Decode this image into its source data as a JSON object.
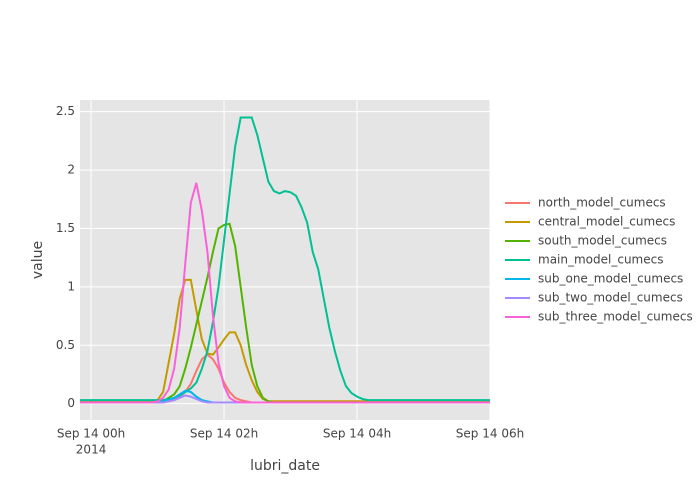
{
  "chart_data": {
    "type": "line",
    "x_label": "lubri_date",
    "y_label": "value",
    "x": [
      "2014-09-13T23:50",
      "2014-09-13T23:55",
      "2014-09-14T00:00",
      "2014-09-14T00:05",
      "2014-09-14T00:10",
      "2014-09-14T00:15",
      "2014-09-14T00:20",
      "2014-09-14T00:25",
      "2014-09-14T00:30",
      "2014-09-14T00:35",
      "2014-09-14T00:40",
      "2014-09-14T00:45",
      "2014-09-14T00:50",
      "2014-09-14T00:55",
      "2014-09-14T01:00",
      "2014-09-14T01:05",
      "2014-09-14T01:10",
      "2014-09-14T01:15",
      "2014-09-14T01:20",
      "2014-09-14T01:25",
      "2014-09-14T01:30",
      "2014-09-14T01:35",
      "2014-09-14T01:40",
      "2014-09-14T01:45",
      "2014-09-14T01:50",
      "2014-09-14T01:55",
      "2014-09-14T02:00",
      "2014-09-14T02:05",
      "2014-09-14T02:10",
      "2014-09-14T02:15",
      "2014-09-14T02:20",
      "2014-09-14T02:25",
      "2014-09-14T02:30",
      "2014-09-14T02:35",
      "2014-09-14T02:40",
      "2014-09-14T02:45",
      "2014-09-14T02:50",
      "2014-09-14T02:55",
      "2014-09-14T03:00",
      "2014-09-14T03:05",
      "2014-09-14T03:10",
      "2014-09-14T03:15",
      "2014-09-14T03:20",
      "2014-09-14T03:25",
      "2014-09-14T03:30",
      "2014-09-14T03:35",
      "2014-09-14T03:40",
      "2014-09-14T03:45",
      "2014-09-14T03:50",
      "2014-09-14T03:55",
      "2014-09-14T04:00",
      "2014-09-14T04:05",
      "2014-09-14T04:10",
      "2014-09-14T04:15",
      "2014-09-14T04:20",
      "2014-09-14T04:25",
      "2014-09-14T04:30",
      "2014-09-14T04:35",
      "2014-09-14T04:40",
      "2014-09-14T04:45",
      "2014-09-14T04:50",
      "2014-09-14T04:55",
      "2014-09-14T05:00",
      "2014-09-14T05:05",
      "2014-09-14T05:10",
      "2014-09-14T05:15",
      "2014-09-14T05:20",
      "2014-09-14T05:25",
      "2014-09-14T05:30",
      "2014-09-14T05:35",
      "2014-09-14T05:40",
      "2014-09-14T05:45",
      "2014-09-14T05:50",
      "2014-09-14T05:55",
      "2014-09-14T06:00"
    ],
    "series": [
      {
        "name": "north_model_cumecs",
        "color": "#F8766D",
        "values": [
          0.01,
          0.01,
          0.01,
          0.01,
          0.01,
          0.01,
          0.01,
          0.01,
          0.01,
          0.01,
          0.01,
          0.01,
          0.01,
          0.01,
          0.01,
          0.01,
          0.02,
          0.03,
          0.06,
          0.1,
          0.17,
          0.28,
          0.38,
          0.42,
          0.38,
          0.3,
          0.18,
          0.1,
          0.05,
          0.03,
          0.02,
          0.01,
          0.01,
          0.01,
          0.01,
          0.01,
          0.01,
          0.01,
          0.01,
          0.01,
          0.01,
          0.01,
          0.01,
          0.01,
          0.01,
          0.01,
          0.01,
          0.01,
          0.01,
          0.01,
          0.01,
          0.01,
          0.01,
          0.01,
          0.01,
          0.01,
          0.01,
          0.01,
          0.01,
          0.01,
          0.01,
          0.01,
          0.01,
          0.01,
          0.01,
          0.01,
          0.01,
          0.01,
          0.01,
          0.01,
          0.01,
          0.01,
          0.01,
          0.01,
          0.01
        ]
      },
      {
        "name": "central_model_cumecs",
        "color": "#C49A00",
        "values": [
          0.02,
          0.02,
          0.02,
          0.02,
          0.02,
          0.02,
          0.02,
          0.02,
          0.02,
          0.02,
          0.02,
          0.02,
          0.02,
          0.02,
          0.03,
          0.1,
          0.35,
          0.6,
          0.9,
          1.06,
          1.06,
          0.8,
          0.55,
          0.43,
          0.42,
          0.48,
          0.55,
          0.61,
          0.61,
          0.5,
          0.33,
          0.2,
          0.1,
          0.04,
          0.02,
          0.02,
          0.02,
          0.02,
          0.02,
          0.02,
          0.02,
          0.02,
          0.02,
          0.02,
          0.02,
          0.02,
          0.02,
          0.02,
          0.02,
          0.02,
          0.02,
          0.02,
          0.02,
          0.02,
          0.02,
          0.02,
          0.02,
          0.02,
          0.02,
          0.02,
          0.02,
          0.02,
          0.02,
          0.02,
          0.02,
          0.02,
          0.02,
          0.02,
          0.02,
          0.02,
          0.02,
          0.02,
          0.02,
          0.02,
          0.02
        ]
      },
      {
        "name": "south_model_cumecs",
        "color": "#53B400",
        "values": [
          0.01,
          0.01,
          0.01,
          0.01,
          0.01,
          0.01,
          0.01,
          0.01,
          0.01,
          0.01,
          0.01,
          0.01,
          0.01,
          0.01,
          0.01,
          0.02,
          0.05,
          0.08,
          0.15,
          0.3,
          0.48,
          0.68,
          0.88,
          1.08,
          1.3,
          1.5,
          1.53,
          1.54,
          1.35,
          1.0,
          0.65,
          0.33,
          0.15,
          0.05,
          0.02,
          0.01,
          0.01,
          0.01,
          0.01,
          0.01,
          0.01,
          0.01,
          0.01,
          0.01,
          0.01,
          0.01,
          0.01,
          0.01,
          0.01,
          0.01,
          0.01,
          0.01,
          0.01,
          0.01,
          0.01,
          0.01,
          0.01,
          0.01,
          0.01,
          0.01,
          0.01,
          0.01,
          0.01,
          0.01,
          0.01,
          0.01,
          0.01,
          0.01,
          0.01,
          0.01,
          0.01,
          0.01,
          0.01,
          0.01,
          0.01
        ]
      },
      {
        "name": "main_model_cumecs",
        "color": "#00C094",
        "values": [
          0.03,
          0.03,
          0.03,
          0.03,
          0.03,
          0.03,
          0.03,
          0.03,
          0.03,
          0.03,
          0.03,
          0.03,
          0.03,
          0.03,
          0.03,
          0.03,
          0.04,
          0.05,
          0.07,
          0.1,
          0.13,
          0.18,
          0.3,
          0.45,
          0.7,
          1.0,
          1.4,
          1.8,
          2.2,
          2.45,
          2.45,
          2.45,
          2.3,
          2.1,
          1.9,
          1.82,
          1.8,
          1.82,
          1.81,
          1.78,
          1.68,
          1.55,
          1.3,
          1.15,
          0.9,
          0.65,
          0.45,
          0.28,
          0.15,
          0.09,
          0.06,
          0.04,
          0.03,
          0.03,
          0.03,
          0.03,
          0.03,
          0.03,
          0.03,
          0.03,
          0.03,
          0.03,
          0.03,
          0.03,
          0.03,
          0.03,
          0.03,
          0.03,
          0.03,
          0.03,
          0.03,
          0.03,
          0.03,
          0.03,
          0.03
        ]
      },
      {
        "name": "sub_one_model_cumecs",
        "color": "#00B6EB",
        "values": [
          0.01,
          0.01,
          0.01,
          0.01,
          0.01,
          0.01,
          0.01,
          0.01,
          0.01,
          0.01,
          0.01,
          0.01,
          0.01,
          0.01,
          0.01,
          0.02,
          0.03,
          0.05,
          0.08,
          0.11,
          0.1,
          0.06,
          0.03,
          0.02,
          0.01,
          0.01,
          0.01,
          0.01,
          0.01,
          0.01,
          0.01,
          0.01,
          0.01,
          0.01,
          0.01,
          0.01,
          0.01,
          0.01,
          0.01,
          0.01,
          0.01,
          0.01,
          0.01,
          0.01,
          0.01,
          0.01,
          0.01,
          0.01,
          0.01,
          0.01,
          0.01,
          0.01,
          0.01,
          0.01,
          0.01,
          0.01,
          0.01,
          0.01,
          0.01,
          0.01,
          0.01,
          0.01,
          0.01,
          0.01,
          0.01,
          0.01,
          0.01,
          0.01,
          0.01,
          0.01,
          0.01,
          0.01,
          0.01,
          0.01,
          0.01
        ]
      },
      {
        "name": "sub_two_model_cumecs",
        "color": "#A58AFF",
        "values": [
          0.01,
          0.01,
          0.01,
          0.01,
          0.01,
          0.01,
          0.01,
          0.01,
          0.01,
          0.01,
          0.01,
          0.01,
          0.01,
          0.01,
          0.01,
          0.01,
          0.02,
          0.03,
          0.05,
          0.07,
          0.06,
          0.04,
          0.02,
          0.01,
          0.01,
          0.01,
          0.01,
          0.01,
          0.01,
          0.01,
          0.01,
          0.01,
          0.01,
          0.01,
          0.01,
          0.01,
          0.01,
          0.01,
          0.01,
          0.01,
          0.01,
          0.01,
          0.01,
          0.01,
          0.01,
          0.01,
          0.01,
          0.01,
          0.01,
          0.01,
          0.01,
          0.01,
          0.01,
          0.01,
          0.01,
          0.01,
          0.01,
          0.01,
          0.01,
          0.01,
          0.01,
          0.01,
          0.01,
          0.01,
          0.01,
          0.01,
          0.01,
          0.01,
          0.01,
          0.01,
          0.01,
          0.01,
          0.01,
          0.01,
          0.01
        ]
      },
      {
        "name": "sub_three_model_cumecs",
        "color": "#FB61D7",
        "values": [
          0.01,
          0.01,
          0.01,
          0.01,
          0.01,
          0.01,
          0.01,
          0.01,
          0.01,
          0.01,
          0.01,
          0.01,
          0.01,
          0.01,
          0.02,
          0.05,
          0.12,
          0.3,
          0.65,
          1.2,
          1.72,
          1.89,
          1.65,
          1.3,
          0.75,
          0.35,
          0.15,
          0.05,
          0.02,
          0.01,
          0.01,
          0.01,
          0.01,
          0.01,
          0.01,
          0.01,
          0.01,
          0.01,
          0.01,
          0.01,
          0.01,
          0.01,
          0.01,
          0.01,
          0.01,
          0.01,
          0.01,
          0.01,
          0.01,
          0.01,
          0.01,
          0.01,
          0.01,
          0.01,
          0.01,
          0.01,
          0.01,
          0.01,
          0.01,
          0.01,
          0.01,
          0.01,
          0.01,
          0.01,
          0.01,
          0.01,
          0.01,
          0.01,
          0.01,
          0.01,
          0.01,
          0.01,
          0.01,
          0.01,
          0.01
        ]
      }
    ],
    "xlim": [
      "2014-09-13T23:50",
      "2014-09-14T06:00"
    ],
    "xticks": [
      {
        "value": "2014-09-14T00:00",
        "label": "Sep 14 00h"
      },
      {
        "value": "2014-09-14T02:00",
        "label": "Sep 14 02h"
      },
      {
        "value": "2014-09-14T04:00",
        "label": "Sep 14 04h"
      },
      {
        "value": "2014-09-14T06:00",
        "label": "Sep 14 06h"
      }
    ],
    "xtick_sublabel": "2014",
    "ylim": [
      -0.14,
      2.6
    ],
    "yticks": [
      0,
      0.5,
      1,
      1.5,
      2,
      2.5
    ],
    "grid": true,
    "background": "#e5e5e5",
    "legend": "right"
  }
}
